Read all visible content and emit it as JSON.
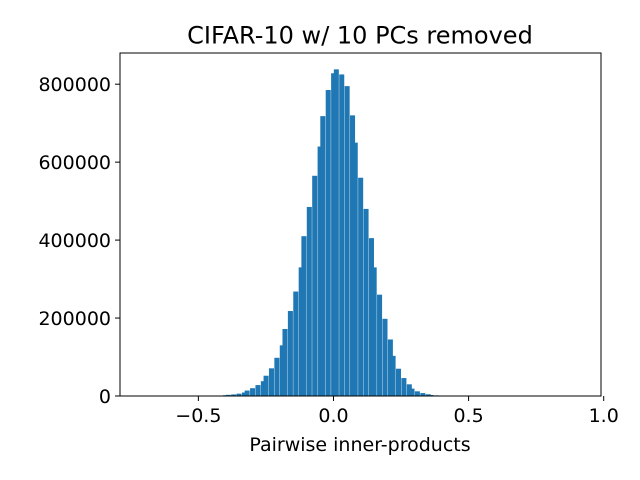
{
  "chart_data": {
    "type": "bar",
    "title": "CIFAR-10 w/ 10 PCs removed",
    "xlabel": "Pairwise inner-products",
    "ylabel": "",
    "xlim": [
      -0.79,
      0.99
    ],
    "ylim": [
      0,
      880000
    ],
    "grid": false,
    "legend": "none",
    "bar_color": "#1f77b4",
    "bin_width": 0.0175,
    "x_ticks": [
      {
        "value": -0.5,
        "label": "−0.5"
      },
      {
        "value": 0.0,
        "label": "0.0"
      },
      {
        "value": 0.5,
        "label": "0.5"
      },
      {
        "value": 1.0,
        "label": "1.0"
      }
    ],
    "y_ticks": [
      {
        "value": 0,
        "label": "0"
      },
      {
        "value": 200000,
        "label": "200000"
      },
      {
        "value": 400000,
        "label": "400000"
      },
      {
        "value": 600000,
        "label": "600000"
      },
      {
        "value": 800000,
        "label": "800000"
      }
    ],
    "bins": [
      {
        "x": -0.42,
        "y": 1000
      },
      {
        "x": -0.4,
        "y": 2000
      },
      {
        "x": -0.39,
        "y": 3000
      },
      {
        "x": -0.37,
        "y": 4000
      },
      {
        "x": -0.35,
        "y": 6000
      },
      {
        "x": -0.33,
        "y": 9000
      },
      {
        "x": -0.32,
        "y": 14000
      },
      {
        "x": -0.3,
        "y": 20000
      },
      {
        "x": -0.28,
        "y": 28000
      },
      {
        "x": -0.26,
        "y": 38000
      },
      {
        "x": -0.25,
        "y": 52000
      },
      {
        "x": -0.23,
        "y": 71000
      },
      {
        "x": -0.21,
        "y": 98000
      },
      {
        "x": -0.19,
        "y": 130000
      },
      {
        "x": -0.18,
        "y": 172000
      },
      {
        "x": -0.16,
        "y": 218000
      },
      {
        "x": -0.14,
        "y": 268000
      },
      {
        "x": -0.12,
        "y": 330000
      },
      {
        "x": -0.11,
        "y": 410000
      },
      {
        "x": -0.09,
        "y": 485000
      },
      {
        "x": -0.07,
        "y": 565000
      },
      {
        "x": -0.05,
        "y": 640000
      },
      {
        "x": -0.04,
        "y": 718000
      },
      {
        "x": -0.02,
        "y": 785000
      },
      {
        "x": 0.0,
        "y": 828000
      },
      {
        "x": 0.01,
        "y": 838000
      },
      {
        "x": 0.03,
        "y": 825000
      },
      {
        "x": 0.05,
        "y": 795000
      },
      {
        "x": 0.07,
        "y": 720000
      },
      {
        "x": 0.08,
        "y": 650000
      },
      {
        "x": 0.1,
        "y": 560000
      },
      {
        "x": 0.12,
        "y": 480000
      },
      {
        "x": 0.14,
        "y": 405000
      },
      {
        "x": 0.15,
        "y": 330000
      },
      {
        "x": 0.17,
        "y": 260000
      },
      {
        "x": 0.19,
        "y": 198000
      },
      {
        "x": 0.21,
        "y": 145000
      },
      {
        "x": 0.22,
        "y": 103000
      },
      {
        "x": 0.24,
        "y": 70000
      },
      {
        "x": 0.26,
        "y": 46000
      },
      {
        "x": 0.28,
        "y": 30000
      },
      {
        "x": 0.29,
        "y": 19000
      },
      {
        "x": 0.31,
        "y": 12000
      },
      {
        "x": 0.33,
        "y": 7500
      },
      {
        "x": 0.35,
        "y": 4500
      },
      {
        "x": 0.36,
        "y": 2700
      },
      {
        "x": 0.38,
        "y": 1600
      },
      {
        "x": 0.4,
        "y": 900
      },
      {
        "x": 0.42,
        "y": 500
      }
    ]
  }
}
